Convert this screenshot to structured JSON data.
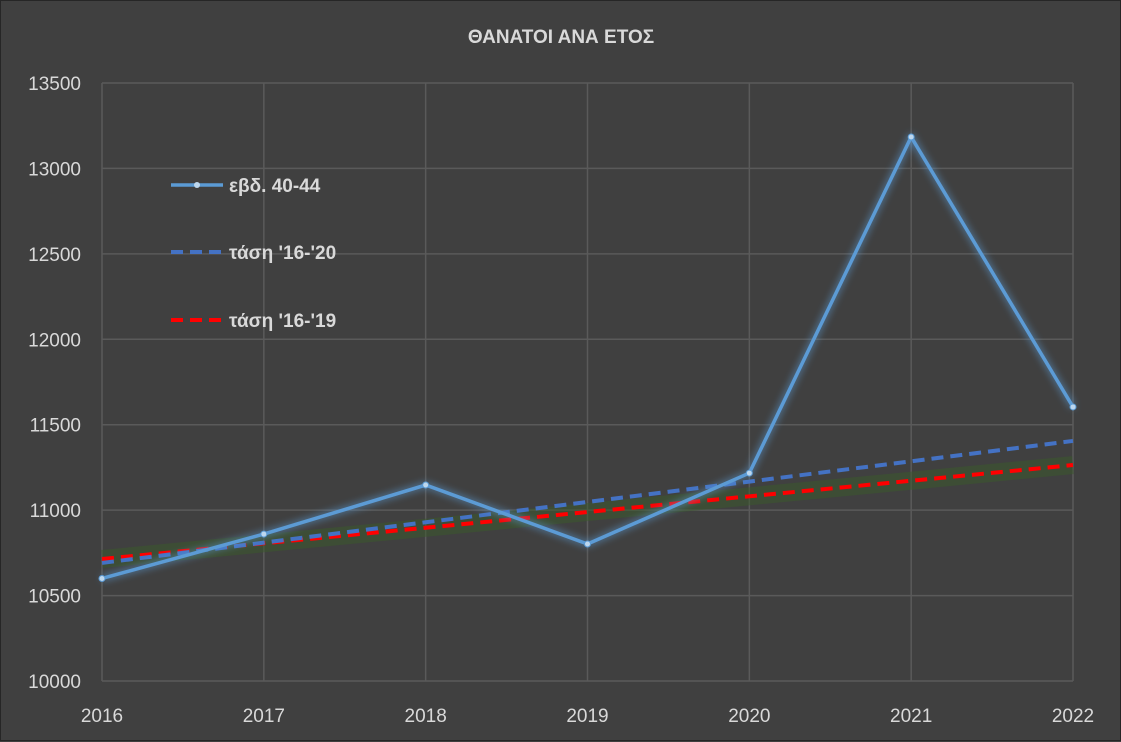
{
  "chart_data": {
    "type": "line",
    "title": "ΘΑΝΑΤΟΙ ΑΝΑ ΕΤΟΣ",
    "xlabel": "",
    "ylabel": "",
    "categories": [
      "2016",
      "2017",
      "2018",
      "2019",
      "2020",
      "2021",
      "2022"
    ],
    "ylim": [
      10000,
      13500
    ],
    "yticks": [
      "10000",
      "10500",
      "11000",
      "11500",
      "12000",
      "12500",
      "13000",
      "13500"
    ],
    "grid": true,
    "legend_position": "top-left (inside plot)",
    "series": [
      {
        "name": "εβδ. 40-44",
        "style": "solid-markers",
        "color": "#5b9bd5",
        "values": [
          10600,
          10860,
          11147,
          10802,
          11217,
          13184,
          11604
        ]
      },
      {
        "name": "τάση '16-'20",
        "style": "dashed",
        "color": "#4472c4",
        "values": [
          10691,
          10810,
          10929,
          11048,
          11167,
          11286,
          11405
        ]
      },
      {
        "name": "τάση '16-'19",
        "style": "dashed",
        "color": "#ff0000",
        "values": [
          10714,
          10806,
          10897,
          10989,
          11081,
          11172,
          11264
        ]
      }
    ]
  },
  "colors": {
    "background": "#404040",
    "grid": "#5a5a5a",
    "text": "#d9d9d9"
  }
}
